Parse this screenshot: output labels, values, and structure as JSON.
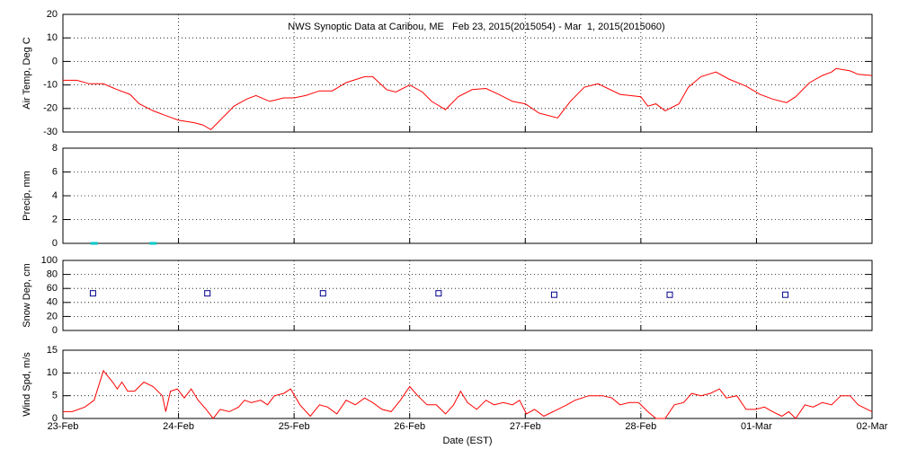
{
  "chart_data": [
    {
      "type": "line",
      "title": "NWS Synoptic Data at Caribou, ME   Feb 23, 2015(2015054) - Mar  1, 2015(2015060)",
      "y_label": "Air Temp, Deg C",
      "grid": true,
      "xlim": [
        0,
        7
      ],
      "xticks": [
        0,
        1,
        2,
        3,
        4,
        5,
        6,
        7
      ],
      "ylim": [
        -30,
        20
      ],
      "yticks": [
        -30,
        -20,
        -10,
        0,
        10,
        20
      ],
      "x": [
        0,
        0.12,
        0.23,
        0.35,
        0.47,
        0.58,
        0.66,
        0.78,
        0.89,
        1.0,
        1.13,
        1.21,
        1.28,
        1.36,
        1.48,
        1.59,
        1.67,
        1.79,
        1.91,
        2.0,
        2.1,
        2.22,
        2.33,
        2.45,
        2.61,
        2.68,
        2.8,
        2.88,
        3.0,
        3.11,
        3.19,
        3.31,
        3.42,
        3.54,
        3.66,
        3.77,
        3.89,
        4.0,
        4.12,
        4.28,
        4.39,
        4.51,
        4.63,
        4.82,
        5.0,
        5.06,
        5.13,
        5.21,
        5.33,
        5.41,
        5.52,
        5.65,
        5.76,
        5.91,
        6.03,
        6.14,
        6.26,
        6.34,
        6.46,
        6.57,
        6.65,
        6.69,
        6.81,
        6.88,
        7.0
      ],
      "series": [
        {
          "color": "#ff0000",
          "values": [
            -8,
            -8,
            -9.5,
            -9.5,
            -12,
            -14,
            -18,
            -21,
            -23,
            -25,
            -26,
            -27,
            -29,
            -25,
            -19,
            -16,
            -14.5,
            -17,
            -15.5,
            -15.5,
            -14.5,
            -12.5,
            -12.5,
            -9,
            -6.5,
            -6.5,
            -12,
            -13,
            -10,
            -13,
            -17,
            -20.5,
            -15,
            -12,
            -11.5,
            -14,
            -17,
            -18,
            -22,
            -24,
            -17,
            -11,
            -9.5,
            -14,
            -15,
            -19,
            -18,
            -21,
            -18,
            -11,
            -6.5,
            -4.5,
            -7.5,
            -10.5,
            -14,
            -16,
            -17.5,
            -15,
            -9,
            -6,
            -4.5,
            -3,
            -4,
            -5.5,
            -6
          ]
        }
      ]
    },
    {
      "type": "scatter",
      "marker": "dash",
      "y_label": "Precip, mm",
      "grid": true,
      "xlim": [
        0,
        7
      ],
      "xticks": [
        0,
        1,
        2,
        3,
        4,
        5,
        6,
        7
      ],
      "ylim": [
        0,
        8
      ],
      "yticks": [
        0,
        2,
        4,
        6,
        8
      ],
      "x": [
        0.27,
        0.78
      ],
      "series": [
        {
          "color": "#00c8c8",
          "values": [
            0,
            0
          ]
        }
      ]
    },
    {
      "type": "scatter",
      "marker": "square",
      "y_label": "Snow Dep, cm",
      "grid": true,
      "xlim": [
        0,
        7
      ],
      "xticks": [
        0,
        1,
        2,
        3,
        4,
        5,
        6,
        7
      ],
      "ylim": [
        0,
        100
      ],
      "yticks": [
        0,
        20,
        40,
        60,
        80,
        100
      ],
      "x": [
        0.26,
        1.25,
        2.25,
        3.25,
        4.25,
        5.25,
        6.25
      ],
      "series": [
        {
          "color": "#00008b",
          "values": [
            53,
            53,
            53,
            53,
            51,
            51,
            51
          ]
        }
      ]
    },
    {
      "type": "line",
      "y_label": "Wind Spd, m/s",
      "x_label": "Date (EST)",
      "grid": true,
      "xlim": [
        0,
        7
      ],
      "xticks": [
        {
          "value": 0,
          "label": "23-Feb"
        },
        {
          "value": 1,
          "label": "24-Feb"
        },
        {
          "value": 2,
          "label": "25-Feb"
        },
        {
          "value": 3,
          "label": "26-Feb"
        },
        {
          "value": 4,
          "label": "27-Feb"
        },
        {
          "value": 5,
          "label": "28-Feb"
        },
        {
          "value": 6,
          "label": "01-Mar"
        },
        {
          "value": 7,
          "label": "02-Mar"
        }
      ],
      "ylim": [
        0,
        15
      ],
      "yticks": [
        0,
        5,
        10,
        15
      ],
      "x": [
        0,
        0.08,
        0.19,
        0.27,
        0.35,
        0.43,
        0.47,
        0.51,
        0.56,
        0.62,
        0.7,
        0.78,
        0.86,
        0.89,
        0.93,
        0.99,
        1.05,
        1.11,
        1.17,
        1.24,
        1.3,
        1.36,
        1.44,
        1.52,
        1.57,
        1.63,
        1.71,
        1.77,
        1.83,
        1.91,
        1.97,
        2.05,
        2.14,
        2.22,
        2.29,
        2.37,
        2.45,
        2.53,
        2.61,
        2.68,
        2.76,
        2.84,
        2.92,
        3.0,
        3.07,
        3.15,
        3.23,
        3.31,
        3.38,
        3.44,
        3.5,
        3.58,
        3.66,
        3.73,
        3.81,
        3.89,
        3.95,
        4.01,
        4.08,
        4.16,
        4.28,
        4.36,
        4.43,
        4.55,
        4.67,
        4.75,
        4.82,
        4.9,
        4.98,
        5.06,
        5.13,
        5.21,
        5.29,
        5.37,
        5.44,
        5.52,
        5.6,
        5.68,
        5.74,
        5.83,
        5.91,
        5.99,
        6.07,
        6.14,
        6.22,
        6.28,
        6.34,
        6.42,
        6.49,
        6.57,
        6.65,
        6.73,
        6.81,
        6.88,
        6.96,
        7.0
      ],
      "series": [
        {
          "color": "#ff0000",
          "values": [
            1.5,
            1.5,
            2.5,
            4,
            10.5,
            8,
            6.5,
            8,
            6,
            6,
            8,
            7,
            5,
            1.5,
            6,
            6.5,
            4.5,
            6.5,
            4,
            2,
            0,
            2,
            1.5,
            2.5,
            4,
            3.5,
            4,
            3,
            5,
            5.5,
            6.5,
            3,
            0.5,
            3,
            2.5,
            1,
            4,
            3,
            4.5,
            3.5,
            2,
            1.5,
            4,
            7,
            5,
            3,
            3,
            1,
            3,
            6,
            3.5,
            2,
            4,
            3,
            3.5,
            3,
            4,
            1,
            2,
            0.5,
            2,
            3,
            4,
            5,
            5,
            4.5,
            3,
            3.5,
            3.5,
            1.5,
            0,
            0,
            3,
            3.5,
            5.5,
            5,
            5.5,
            6.5,
            4.5,
            5,
            2,
            2,
            2.5,
            1.5,
            0.5,
            1.5,
            0,
            3,
            2.5,
            3.5,
            3,
            5,
            5,
            3,
            2,
            1.5
          ]
        }
      ]
    }
  ]
}
